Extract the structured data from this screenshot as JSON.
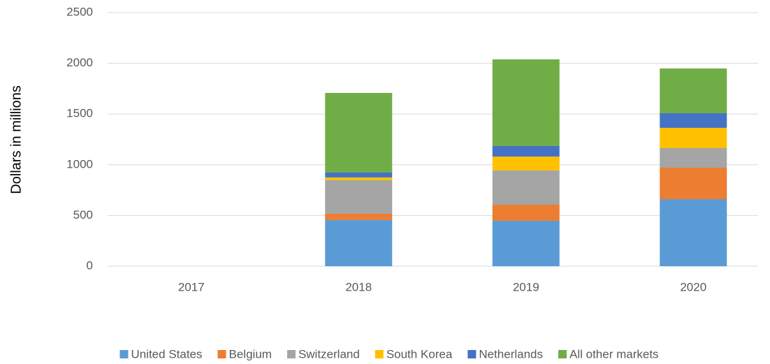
{
  "chart_data": {
    "type": "stacked_bar",
    "y_label": "Dollars in millions",
    "categories": [
      "2017",
      "2018",
      "2019",
      "2020"
    ],
    "series": [
      {
        "name": "United States",
        "color": "#5b9bd5",
        "values": [
          null,
          455,
          448,
          661
        ]
      },
      {
        "name": "Belgium",
        "color": "#ed7d31",
        "values": [
          null,
          62,
          158,
          310
        ]
      },
      {
        "name": "Switzerland",
        "color": "#a5a5a5",
        "values": [
          null,
          330,
          338,
          193
        ]
      },
      {
        "name": "South Korea",
        "color": "#ffc000",
        "values": [
          null,
          28,
          137,
          200
        ]
      },
      {
        "name": "Netherlands",
        "color": "#4472c4",
        "values": [
          null,
          48,
          104,
          144
        ]
      },
      {
        "name": "All other markets",
        "color": "#70ad47",
        "values": [
          null,
          785,
          854,
          441
        ]
      }
    ],
    "ylim": [
      0,
      2500
    ],
    "yticks": [
      0,
      500,
      1000,
      1500,
      2000,
      2500
    ],
    "grid": true,
    "legend": "bottom"
  }
}
